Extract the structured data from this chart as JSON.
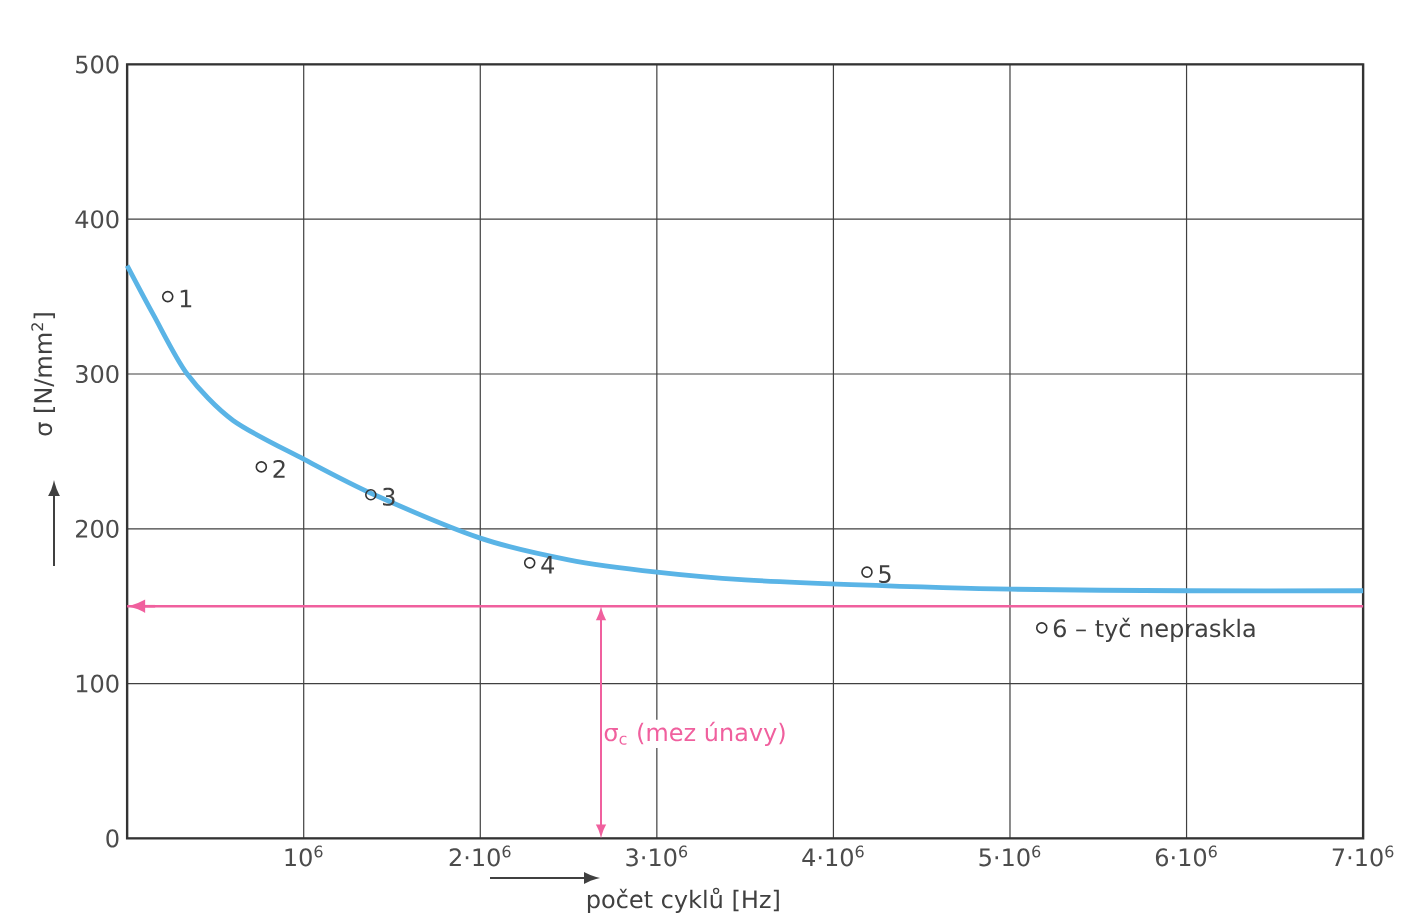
{
  "chart_data": {
    "type": "line",
    "xlabel": "počet cyklů [Hz]",
    "ylabel": "σ [N/mm$^{2}$]",
    "xlim": [
      0,
      7000000
    ],
    "ylim": [
      0,
      500
    ],
    "xticks": [
      {
        "value": 1000000,
        "label": "10$^{6}$"
      },
      {
        "value": 2000000,
        "label": "2·10$^{6}$"
      },
      {
        "value": 3000000,
        "label": "3·10$^{6}$"
      },
      {
        "value": 4000000,
        "label": "4·10$^{6}$"
      },
      {
        "value": 5000000,
        "label": "5·10$^{6}$"
      },
      {
        "value": 6000000,
        "label": "6·10$^{6}$"
      },
      {
        "value": 7000000,
        "label": "7·10$^{6}$"
      }
    ],
    "yticks": [
      0,
      100,
      200,
      300,
      400,
      500
    ],
    "grid": true,
    "series": [
      {
        "color": "#5ab4e6",
        "marker": "none",
        "x": [
          0,
          150000,
          340000,
          600000,
          1000000,
          1400000,
          2000000,
          2500000,
          3000000,
          3500000,
          4100000,
          5000000,
          6000000,
          7000000
        ],
        "values": [
          370,
          338,
          300,
          270,
          245,
          222,
          194,
          180,
          172,
          167,
          164,
          161,
          160,
          160
        ]
      },
      {
        "type": "scatter",
        "color": "#333333",
        "marker": "circle",
        "x": [
          230000,
          760000,
          1380000,
          2280000,
          4190000,
          5180000
        ],
        "values": [
          350,
          240,
          222,
          178,
          172,
          136
        ]
      }
    ],
    "annotations": [
      {
        "text": "1",
        "x": 230000,
        "y": 350
      },
      {
        "text": "2",
        "x": 760000,
        "y": 240
      },
      {
        "text": "3",
        "x": 1380000,
        "y": 222
      },
      {
        "text": "4",
        "x": 2280000,
        "y": 178
      },
      {
        "text": "5",
        "x": 4190000,
        "y": 172
      },
      {
        "text": "6 – tyč nepraskla",
        "x": 5180000,
        "y": 136
      }
    ],
    "ref_lines": [
      {
        "axis": "y",
        "value": 150,
        "label": "σ$_{c}$ (mez únavy)",
        "color": "#f0609e"
      }
    ]
  }
}
